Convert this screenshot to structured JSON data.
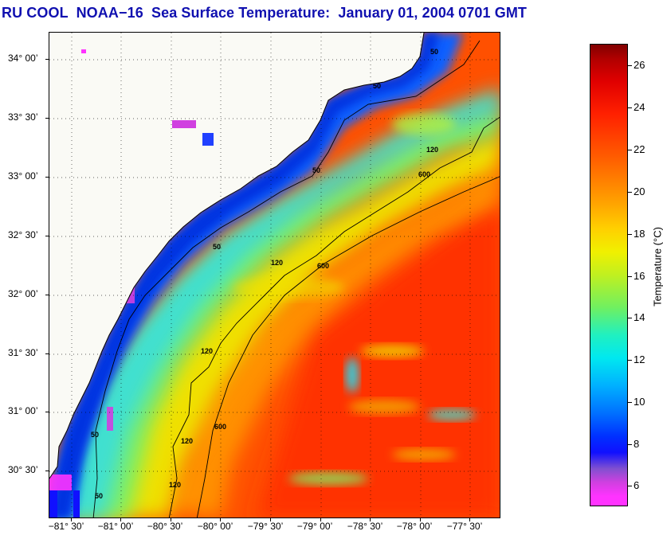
{
  "title": "RU COOL  NOAA−16  Sea Surface Temperature:  January 01, 2004 0701 GMT",
  "map": {
    "lat_labels": [
      "34° 00’",
      "33° 30’",
      "33° 00’",
      "32° 30’",
      "32° 00’",
      "31° 30’",
      "31° 00’",
      "30° 30’"
    ],
    "lon_labels": [
      "−81° 30’",
      "−81° 00’",
      "−80° 30’",
      "−80° 00’",
      "−79° 30’",
      "−79° 00’",
      "−78° 30’",
      "−78° 00’",
      "−77° 30’"
    ],
    "contour_labels": [
      "50",
      "120",
      "600"
    ],
    "land_color": "#fafaf5",
    "grid": "dotted"
  },
  "colorbar": {
    "ticks": [
      "26",
      "24",
      "22",
      "20",
      "18",
      "16",
      "14",
      "12",
      "10",
      "8",
      "6"
    ],
    "label": "Temperature (°C)",
    "range": [
      5,
      27
    ],
    "low_color": "#ff33ff",
    "high_color": "#800000"
  }
}
